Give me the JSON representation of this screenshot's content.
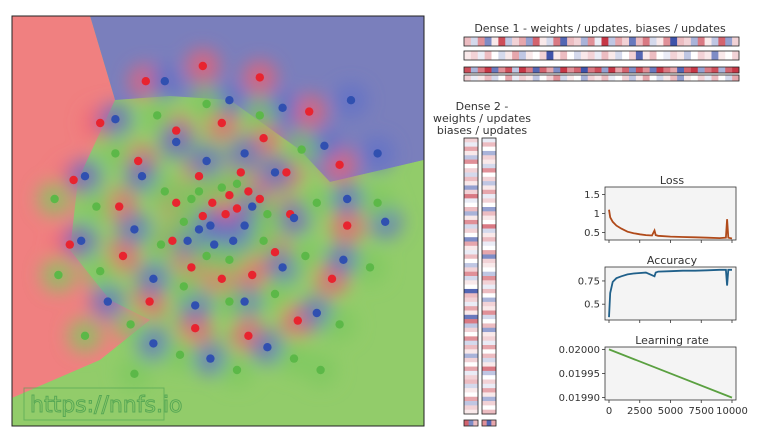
{
  "watermark": "https://nnfs.io",
  "titles": {
    "dense1": "Dense 1 - weights / updates, biases / updates",
    "dense2_line1": "Dense 2 -",
    "dense2_line2": "weights / updates",
    "dense2_line3": "biases / updates",
    "loss": "Loss",
    "accuracy": "Accuracy",
    "lr": "Learning rate"
  },
  "colors": {
    "class_red": "#e8242f",
    "class_blue": "#3050b0",
    "class_green": "#5cb848",
    "region_red": "#f08080",
    "region_blue": "#7a7fbc",
    "region_green": "#92cc6a",
    "loss_line": "#b04a1a",
    "acc_line": "#20608a",
    "lr_line": "#5aa040",
    "heat_pos": "#c02030",
    "heat_neg": "#2840a0"
  },
  "chart_data": [
    {
      "type": "scatter",
      "title": "",
      "description_free": true,
      "series": [
        {
          "name": "",
          "color": "red",
          "points": [
            [
              0.04,
              0.02
            ],
            [
              0.1,
              0.05
            ],
            [
              0.06,
              0.12
            ],
            [
              -0.03,
              0.08
            ],
            [
              -0.08,
              0.01
            ],
            [
              0.16,
              0.14
            ],
            [
              0.22,
              0.1
            ],
            [
              0.12,
              0.24
            ],
            [
              -0.1,
              0.22
            ],
            [
              -0.22,
              0.08
            ],
            [
              -0.24,
              -0.12
            ],
            [
              -0.14,
              -0.26
            ],
            [
              0.02,
              -0.32
            ],
            [
              0.18,
              -0.3
            ],
            [
              0.3,
              -0.18
            ],
            [
              0.38,
              0.02
            ],
            [
              0.36,
              0.24
            ],
            [
              0.24,
              0.42
            ],
            [
              0.02,
              0.5
            ],
            [
              -0.22,
              0.46
            ],
            [
              -0.42,
              0.3
            ],
            [
              -0.52,
              0.06
            ],
            [
              -0.5,
              -0.2
            ],
            [
              -0.36,
              -0.44
            ],
            [
              -0.12,
              -0.58
            ],
            [
              0.16,
              -0.62
            ],
            [
              0.42,
              -0.54
            ],
            [
              0.6,
              -0.32
            ],
            [
              0.68,
              -0.04
            ],
            [
              0.64,
              0.28
            ],
            [
              0.48,
              0.56
            ],
            [
              0.22,
              0.74
            ],
            [
              -0.08,
              0.8
            ],
            [
              -0.38,
              0.72
            ],
            [
              -0.62,
              0.5
            ],
            [
              -0.76,
              0.2
            ],
            [
              -0.78,
              -0.14
            ]
          ]
        },
        {
          "name": "",
          "color": "blue",
          "points": [
            [
              -0.04,
              -0.04
            ],
            [
              -0.1,
              -0.06
            ],
            [
              -0.02,
              -0.14
            ],
            [
              0.08,
              -0.12
            ],
            [
              0.14,
              -0.04
            ],
            [
              0.18,
              0.06
            ],
            [
              -0.16,
              -0.12
            ],
            [
              -0.06,
              0.3
            ],
            [
              0.14,
              0.34
            ],
            [
              0.3,
              0.24
            ],
            [
              0.4,
              0.0
            ],
            [
              0.34,
              -0.26
            ],
            [
              0.14,
              -0.44
            ],
            [
              -0.12,
              -0.46
            ],
            [
              -0.34,
              -0.32
            ],
            [
              -0.44,
              -0.06
            ],
            [
              -0.4,
              0.22
            ],
            [
              -0.22,
              0.4
            ],
            [
              0.06,
              0.62
            ],
            [
              0.34,
              0.58
            ],
            [
              0.56,
              0.38
            ],
            [
              0.68,
              0.1
            ],
            [
              0.66,
              -0.22
            ],
            [
              0.52,
              -0.5
            ],
            [
              0.26,
              -0.68
            ],
            [
              -0.04,
              -0.74
            ],
            [
              -0.34,
              -0.66
            ],
            [
              -0.58,
              -0.44
            ],
            [
              -0.72,
              -0.12
            ],
            [
              -0.7,
              0.22
            ],
            [
              -0.54,
              0.52
            ],
            [
              -0.28,
              0.72
            ],
            [
              0.7,
              0.62
            ],
            [
              0.84,
              0.34
            ],
            [
              0.88,
              -0.02
            ]
          ]
        },
        {
          "name": "",
          "color": "green",
          "points": [
            [
              0.02,
              0.16
            ],
            [
              0.1,
              0.18
            ],
            [
              -0.14,
              0.1
            ],
            [
              -0.18,
              -0.02
            ],
            [
              -0.1,
              0.14
            ],
            [
              0.06,
              -0.22
            ],
            [
              -0.06,
              -0.2
            ],
            [
              0.24,
              -0.12
            ],
            [
              0.26,
              0.02
            ],
            [
              -0.28,
              0.14
            ],
            [
              -0.3,
              -0.14
            ],
            [
              -0.18,
              -0.36
            ],
            [
              0.06,
              -0.44
            ],
            [
              0.3,
              -0.4
            ],
            [
              0.46,
              -0.2
            ],
            [
              0.52,
              0.08
            ],
            [
              0.44,
              0.36
            ],
            [
              0.22,
              0.54
            ],
            [
              -0.06,
              0.6
            ],
            [
              -0.32,
              0.54
            ],
            [
              -0.54,
              0.34
            ],
            [
              -0.64,
              0.06
            ],
            [
              -0.62,
              -0.28
            ],
            [
              -0.46,
              -0.56
            ],
            [
              -0.2,
              -0.72
            ],
            [
              0.1,
              -0.8
            ],
            [
              0.4,
              -0.74
            ],
            [
              0.64,
              -0.56
            ],
            [
              0.8,
              -0.26
            ],
            [
              0.84,
              0.08
            ],
            [
              -0.86,
              0.1
            ],
            [
              -0.84,
              -0.3
            ],
            [
              -0.7,
              -0.62
            ],
            [
              -0.44,
              -0.82
            ],
            [
              0.54,
              -0.8
            ]
          ]
        }
      ]
    },
    {
      "type": "line",
      "title": "Loss",
      "yticks": [
        0.5,
        1.0,
        1.5
      ],
      "ylim": [
        0.3,
        1.7
      ],
      "xlim": [
        0,
        10000
      ],
      "x": [
        0,
        100,
        300,
        600,
        1000,
        1500,
        2000,
        2500,
        3000,
        3500,
        3700,
        3800,
        4000,
        5000,
        6000,
        7000,
        8000,
        9000,
        9500,
        9600,
        9700,
        10000
      ],
      "y": [
        1.1,
        0.9,
        0.78,
        0.68,
        0.6,
        0.52,
        0.48,
        0.45,
        0.43,
        0.42,
        0.55,
        0.43,
        0.41,
        0.39,
        0.38,
        0.37,
        0.36,
        0.35,
        0.36,
        0.85,
        0.36,
        0.34
      ]
    },
    {
      "type": "line",
      "title": "Accuracy",
      "yticks": [
        0.5,
        0.75
      ],
      "ylim": [
        0.33,
        0.9
      ],
      "xlim": [
        0,
        10000
      ],
      "x": [
        0,
        100,
        300,
        600,
        1000,
        1500,
        2000,
        3000,
        3700,
        3800,
        4000,
        5000,
        6000,
        7000,
        8000,
        9000,
        9500,
        9600,
        9700,
        10000
      ],
      "y": [
        0.36,
        0.62,
        0.74,
        0.78,
        0.8,
        0.82,
        0.83,
        0.84,
        0.8,
        0.84,
        0.85,
        0.855,
        0.86,
        0.86,
        0.865,
        0.87,
        0.87,
        0.7,
        0.87,
        0.87
      ]
    },
    {
      "type": "line",
      "title": "Learning rate",
      "yticks": [
        0.0199,
        0.01995,
        0.02
      ],
      "ytick_labels": [
        "0.01990",
        "0.01995",
        "0.02000"
      ],
      "xticks": [
        0,
        2500,
        5000,
        7500,
        10000
      ],
      "ylim": [
        0.019895,
        0.020005
      ],
      "xlim": [
        0,
        10000
      ],
      "x": [
        0,
        10000
      ],
      "y": [
        0.02,
        0.0199
      ]
    }
  ],
  "heatmaps": {
    "dense1_rows": [
      [
        0.3,
        -0.2,
        0.5,
        -0.6,
        0.1,
        0.8,
        -0.3,
        0.2,
        0.4,
        -0.5,
        0.7,
        0.1,
        -0.2,
        0.6,
        -0.8,
        0.3,
        0.2,
        -0.4,
        0.5,
        -0.1,
        0.9,
        -0.3,
        0.4,
        0.2,
        -0.7,
        0.3,
        0.6,
        -0.2,
        0.1,
        0.5,
        -0.9,
        0.3,
        0.2,
        -0.4,
        0.6,
        0.1,
        -0.3,
        0.7,
        -0.5,
        0.2
      ],
      [
        0.1,
        0.2,
        -0.1,
        0.3,
        0.0,
        -0.2,
        0.1,
        0.4,
        -0.3,
        0.1,
        0.0,
        0.2,
        -0.9,
        0.1,
        0.3,
        0.0,
        -0.2,
        0.1,
        0.2,
        -0.1,
        0.3,
        0.1,
        -0.2,
        0.0,
        0.2,
        -0.8,
        0.1,
        0.3,
        0.0,
        -0.1,
        0.2,
        0.1,
        -0.3,
        0.0,
        0.2,
        0.1,
        -0.6,
        0.1,
        0.0,
        0.2
      ],
      [
        0.8,
        -0.4,
        0.6,
        0.9,
        -0.7,
        0.5,
        0.8,
        -0.3,
        0.9,
        0.6,
        -0.8,
        0.7,
        0.4,
        -0.6,
        0.9,
        0.5,
        0.7,
        -0.9,
        0.6,
        0.8,
        -0.5,
        0.9,
        0.4,
        0.7,
        -0.6,
        0.8,
        0.5,
        -0.7,
        0.9,
        0.6,
        0.4,
        -0.8,
        0.7,
        0.9,
        -0.5,
        0.6,
        0.8,
        -0.4,
        0.7,
        0.9
      ],
      [
        0.2,
        -0.1,
        0.1,
        0.3,
        -0.2,
        0.0,
        0.4,
        -0.1,
        0.2,
        0.1,
        -0.3,
        0.0,
        0.2,
        0.5,
        -0.2,
        0.1,
        0.0,
        -0.4,
        0.2,
        0.1,
        0.3,
        -0.1,
        0.0,
        0.2,
        -0.3,
        0.1,
        0.4,
        0.0,
        -0.2,
        0.1,
        0.3,
        -0.5,
        0.1,
        0.0,
        0.2,
        -0.1,
        0.3,
        0.0,
        -0.2,
        0.4
      ]
    ],
    "dense2_col1": [
      0.2,
      -0.1,
      0.4,
      0.1,
      -0.3,
      0.5,
      0.0,
      0.2,
      -0.2,
      0.3,
      0.1,
      -0.5,
      0.2,
      0.6,
      -0.1,
      0.0,
      0.3,
      -0.4,
      0.1,
      0.5,
      -0.2,
      0.2,
      0.0,
      -0.6,
      0.4,
      0.1,
      -0.1,
      0.3,
      0.0,
      -0.3,
      0.2,
      0.5,
      -0.2,
      0.1,
      0.0,
      -0.8,
      0.3,
      0.2,
      -0.1,
      0.4,
      0.1,
      -0.7,
      0.6,
      -0.3,
      0.2,
      0.0,
      0.5,
      -0.2,
      0.3,
      0.1,
      -0.4,
      0.2,
      0.0,
      0.4,
      -0.1,
      0.2,
      0.3,
      -0.2,
      0.1,
      0.0,
      0.4,
      -0.3,
      0.2,
      0.1
    ],
    "dense2_col2": [
      -0.1,
      0.3,
      0.0,
      -0.4,
      0.2,
      0.1,
      -0.2,
      0.5,
      0.0,
      0.2,
      -0.3,
      0.1,
      0.4,
      -0.1,
      0.2,
      0.0,
      -0.5,
      0.3,
      0.1,
      0.0,
      0.6,
      -0.2,
      0.1,
      0.3,
      -0.1,
      0.0,
      0.4,
      -0.6,
      0.2,
      0.1,
      0.0,
      -0.3,
      0.5,
      0.2,
      -0.1,
      0.3,
      0.0,
      -0.4,
      0.2,
      0.1,
      0.5,
      -0.2,
      0.0,
      0.3,
      -0.5,
      0.1,
      0.2,
      -0.1,
      0.4,
      0.0,
      0.3,
      -0.2,
      0.1,
      0.6,
      -0.3,
      0.0,
      0.2,
      -0.1,
      0.4,
      0.1,
      -0.4,
      0.2,
      0.0,
      0.3
    ],
    "dense2_bias": [
      0.7,
      -0.6,
      0.3,
      0.5,
      -0.8,
      0.4
    ]
  }
}
